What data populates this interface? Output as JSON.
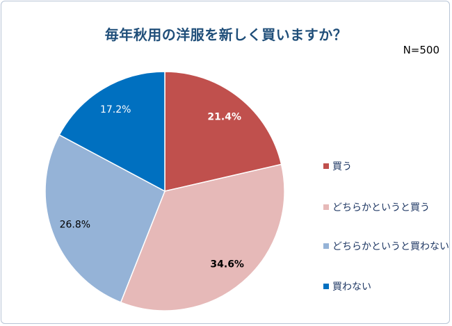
{
  "title": "毎年秋用の洋服を新しく買いますか？",
  "sample_size": "N=500",
  "chart_data": {
    "type": "pie",
    "title": "毎年秋用の洋服を新しく買いますか？",
    "start": "top, clockwise",
    "legend_placement": "right",
    "slices": [
      {
        "name": "買う",
        "value": 21.4,
        "label": "21.4%",
        "color": "#c0504d",
        "label_color": "#ffffff",
        "label_bold": true
      },
      {
        "name": "どちらかというと買う",
        "value": 34.6,
        "label": "34.6%",
        "color": "#e6b9b8",
        "label_color": "#000000",
        "label_bold": true
      },
      {
        "name": "どちらかというと買わない",
        "value": 26.8,
        "label": "26.8%",
        "color": "#95b3d7",
        "label_color": "#000000",
        "label_bold": false
      },
      {
        "name": "買わない",
        "value": 17.2,
        "label": "17.2%",
        "color": "#0070c0",
        "label_color": "#ffffff",
        "label_bold": false
      }
    ]
  }
}
